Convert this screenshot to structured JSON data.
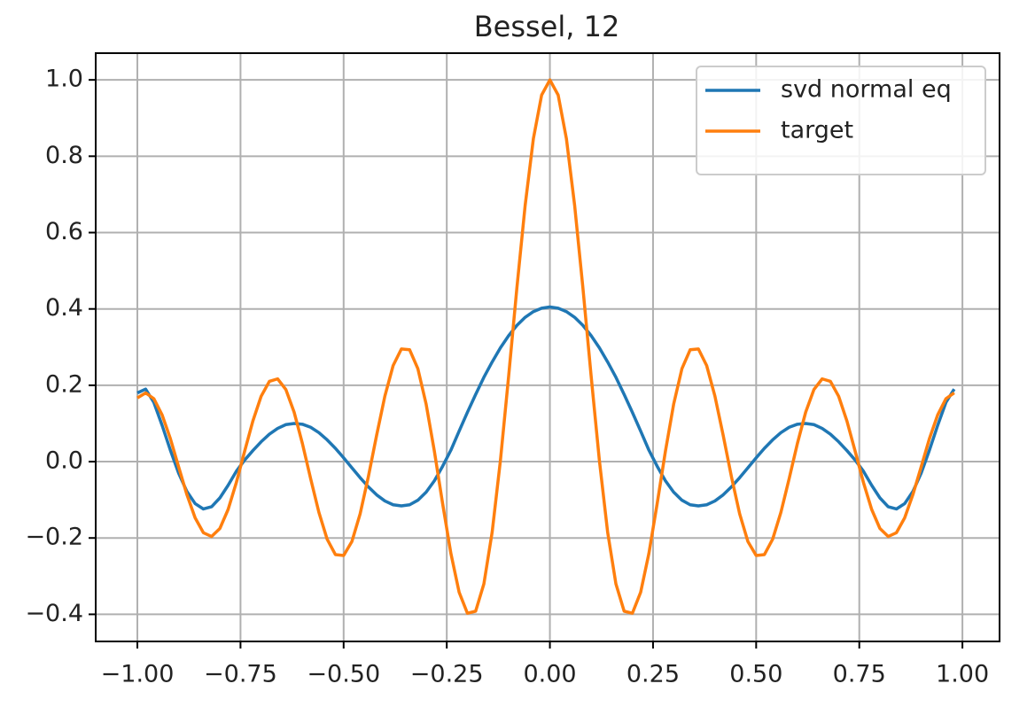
{
  "chart_data": {
    "type": "line",
    "title": "Bessel, 12",
    "x": [
      -1.0,
      -0.98,
      -0.96,
      -0.94,
      -0.92,
      -0.9,
      -0.88,
      -0.86,
      -0.84,
      -0.82,
      -0.8,
      -0.78,
      -0.76,
      -0.74,
      -0.72,
      -0.7,
      -0.68,
      -0.66,
      -0.64,
      -0.62,
      -0.6,
      -0.58,
      -0.56,
      -0.54,
      -0.52,
      -0.5,
      -0.48,
      -0.46,
      -0.44,
      -0.42,
      -0.4,
      -0.38,
      -0.36,
      -0.34,
      -0.32,
      -0.3,
      -0.28,
      -0.26,
      -0.24,
      -0.22,
      -0.2,
      -0.18,
      -0.16,
      -0.14,
      -0.12,
      -0.1,
      -0.08,
      -0.06,
      -0.04,
      -0.02,
      0,
      0.02,
      0.04,
      0.06,
      0.08,
      0.1,
      0.12,
      0.14,
      0.16,
      0.18,
      0.2,
      0.22,
      0.24,
      0.26,
      0.28,
      0.3,
      0.32,
      0.34,
      0.36,
      0.38,
      0.4,
      0.42,
      0.44,
      0.46,
      0.48,
      0.5,
      0.52,
      0.54,
      0.56,
      0.58,
      0.6,
      0.62,
      0.64,
      0.66,
      0.68,
      0.7,
      0.72,
      0.74,
      0.76,
      0.78,
      0.8,
      0.82,
      0.84,
      0.86,
      0.88,
      0.9,
      0.92,
      0.94,
      0.96,
      0.98
    ],
    "series": [
      {
        "name": "svd normal eq",
        "color": "#1f77b4",
        "values": [
          0.18,
          0.19,
          0.155,
          0.095,
          0.03,
          -0.03,
          -0.078,
          -0.11,
          -0.124,
          -0.118,
          -0.095,
          -0.062,
          -0.025,
          0.004,
          0.029,
          0.052,
          0.072,
          0.087,
          0.097,
          0.1,
          0.098,
          0.09,
          0.076,
          0.057,
          0.035,
          0.01,
          -0.016,
          -0.042,
          -0.066,
          -0.087,
          -0.103,
          -0.113,
          -0.116,
          -0.113,
          -0.101,
          -0.08,
          -0.05,
          -0.012,
          0.03,
          0.08,
          0.129,
          0.176,
          0.221,
          0.261,
          0.298,
          0.33,
          0.357,
          0.378,
          0.393,
          0.402,
          0.405,
          0.402,
          0.393,
          0.378,
          0.357,
          0.33,
          0.298,
          0.261,
          0.221,
          0.176,
          0.129,
          0.08,
          0.03,
          -0.012,
          -0.05,
          -0.08,
          -0.101,
          -0.113,
          -0.116,
          -0.113,
          -0.103,
          -0.087,
          -0.066,
          -0.042,
          -0.016,
          0.01,
          0.035,
          0.057,
          0.076,
          0.09,
          0.098,
          0.1,
          0.097,
          0.087,
          0.072,
          0.052,
          0.029,
          0.004,
          -0.025,
          -0.062,
          -0.095,
          -0.118,
          -0.124,
          -0.11,
          -0.078,
          -0.03,
          0.03,
          0.095,
          0.155,
          0.19
        ]
      },
      {
        "name": "target",
        "color": "#ff7f0e",
        "values": [
          0.167,
          0.18,
          0.1649,
          0.1225,
          0.0603,
          -0.0136,
          -0.0862,
          -0.1473,
          -0.1862,
          -0.1961,
          -0.1751,
          -0.1252,
          -0.0544,
          0.0271,
          0.1065,
          0.1711,
          0.2103,
          0.2168,
          0.1888,
          0.1295,
          0.0477,
          -0.0446,
          -0.1328,
          -0.2031,
          -0.2435,
          -0.2459,
          -0.2093,
          -0.1367,
          -0.0392,
          0.0692,
          0.1717,
          0.2516,
          0.2951,
          0.2931,
          0.2433,
          0.1506,
          0.027,
          -0.1103,
          -0.2404,
          -0.3423,
          -0.3971,
          -0.3918,
          -0.3202,
          -0.185,
          0.0025,
          0.2239,
          0.4554,
          0.6711,
          0.8463,
          0.9604,
          1,
          0.9604,
          0.8463,
          0.6711,
          0.4554,
          0.2239,
          0.0025,
          -0.185,
          -0.3202,
          -0.3918,
          -0.3971,
          -0.3423,
          -0.2404,
          -0.1103,
          0.027,
          0.1506,
          0.2433,
          0.2931,
          0.2951,
          0.2516,
          0.1717,
          0.0692,
          -0.0392,
          -0.1367,
          -0.2093,
          -0.2459,
          -0.2435,
          -0.2031,
          -0.1328,
          -0.0446,
          0.0477,
          0.1295,
          0.1888,
          0.2168,
          0.2103,
          0.1711,
          0.1065,
          0.0271,
          -0.0544,
          -0.1252,
          -0.1751,
          -0.1961,
          -0.1862,
          -0.1473,
          -0.0862,
          -0.0136,
          0.0603,
          0.1225,
          0.1649,
          0.18
        ]
      }
    ],
    "xlim": [
      -1.101,
      1.09
    ],
    "ylim": [
      -0.471,
      1.07
    ],
    "xticks": [
      {
        "value": -1,
        "label": "−1.00"
      },
      {
        "value": -0.75,
        "label": "−0.75"
      },
      {
        "value": -0.5,
        "label": "−0.50"
      },
      {
        "value": -0.25,
        "label": "−0.25"
      },
      {
        "value": 0,
        "label": "0.00"
      },
      0.25,
      {
        "value": 0.5,
        "label": "0.50"
      },
      0.75,
      {
        "value": 1,
        "label": "1.00"
      }
    ],
    "yticks": [
      {
        "value": -0.4,
        "label": "−0.4"
      },
      {
        "value": -0.2,
        "label": "−0.2"
      },
      {
        "value": 0,
        "label": "0.0"
      },
      0.2,
      0.4,
      0.6,
      0.8,
      {
        "value": 1,
        "label": "1.0"
      }
    ],
    "grid": true,
    "legend": "upper right"
  }
}
